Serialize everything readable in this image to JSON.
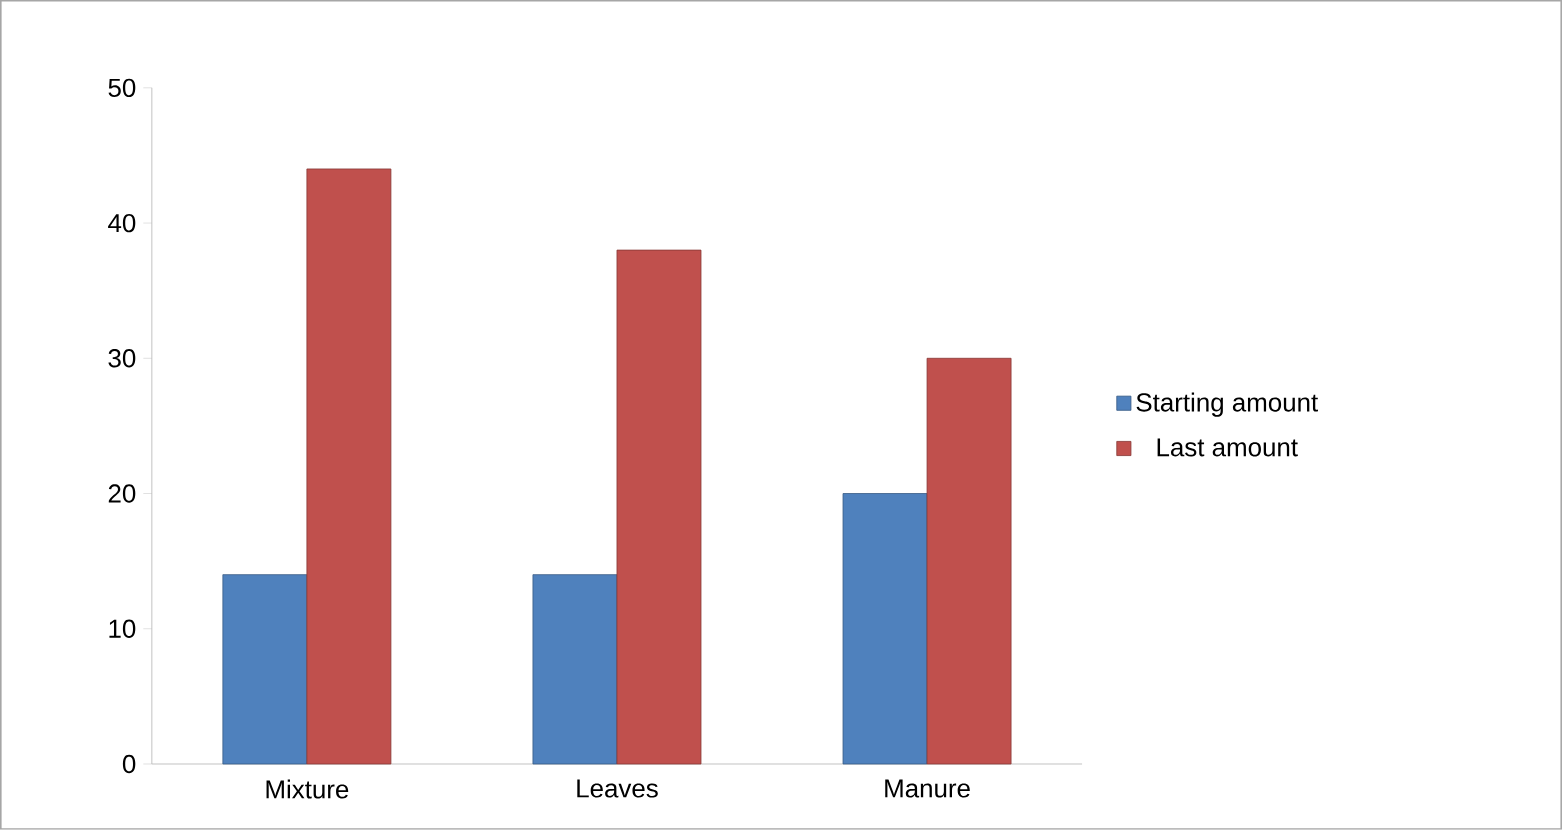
{
  "chart_data": {
    "type": "bar",
    "categories": [
      "Mixture",
      "Leaves",
      "Manure"
    ],
    "series": [
      {
        "name": "Starting amount",
        "color": "#4f81bd",
        "values": [
          14,
          14,
          20
        ]
      },
      {
        "name": "Last amount",
        "color": "#c0504d",
        "values": [
          44,
          38,
          30
        ]
      }
    ],
    "ylim": [
      0,
      50
    ],
    "yticks": [
      0,
      10,
      20,
      30,
      40,
      50
    ],
    "legend": "right"
  }
}
